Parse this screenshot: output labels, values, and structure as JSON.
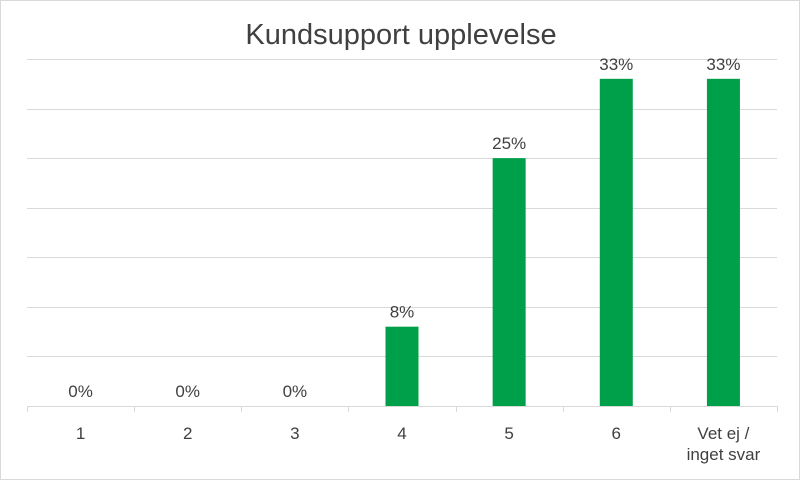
{
  "chart_data": {
    "type": "bar",
    "title": "Kundsupport upplevelse",
    "categories": [
      "1",
      "2",
      "3",
      "4",
      "5",
      "6",
      "Vet ej / inget svar"
    ],
    "category_lines": [
      [
        "1"
      ],
      [
        "2"
      ],
      [
        "3"
      ],
      [
        "4"
      ],
      [
        "5"
      ],
      [
        "6"
      ],
      [
        "Vet ej /",
        "inget svar"
      ]
    ],
    "values": [
      0,
      0,
      0,
      8,
      25,
      33,
      33
    ],
    "data_labels": [
      "0%",
      "0%",
      "0%",
      "8%",
      "25%",
      "33%",
      "33%"
    ],
    "ylim": [
      0,
      35
    ],
    "grid": true,
    "bar_color": "#00a04a"
  }
}
